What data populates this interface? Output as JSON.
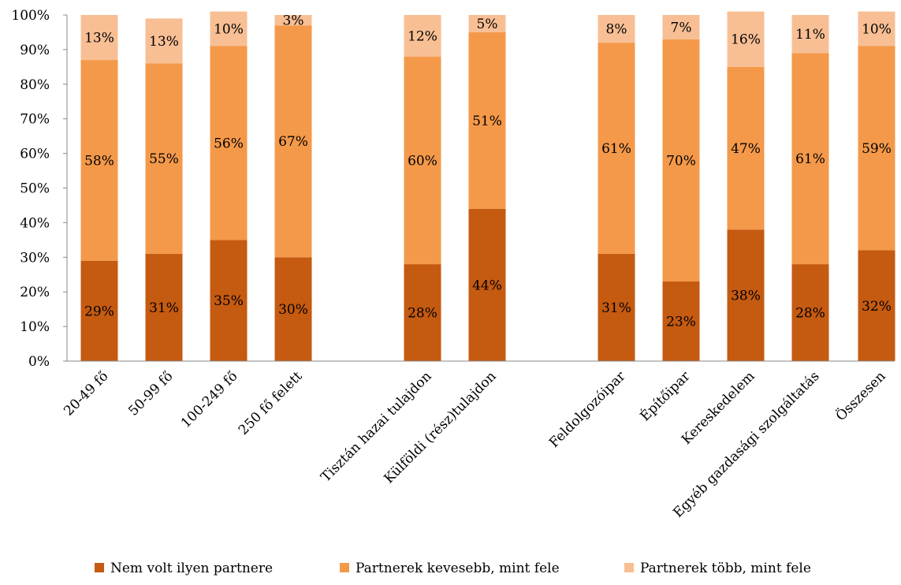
{
  "chart_data": {
    "type": "bar",
    "stacked": true,
    "percent_stacked": true,
    "title": "",
    "xlabel": "",
    "ylabel": "",
    "ylim": [
      0,
      100
    ],
    "yticks": [
      "0%",
      "10%",
      "20%",
      "30%",
      "40%",
      "50%",
      "60%",
      "70%",
      "80%",
      "90%",
      "100%"
    ],
    "grid": false,
    "legend_position": "bottom",
    "groups": [
      [
        "20-49 fő",
        "50-99 fő",
        "100-249 fő",
        "250 fő felett"
      ],
      [
        "Tisztán hazai tulajdon",
        "Külföldi (rész)tulajdon"
      ],
      [
        "Feldolgozóipar",
        "Építőipar",
        "Kereskedelem",
        "Egyéb gazdasági szolgáltatás",
        "Összesen"
      ]
    ],
    "categories": [
      "20-49 fő",
      "50-99 fő",
      "100-249 fő",
      "250 fő felett",
      "Tisztán hazai tulajdon",
      "Külföldi (rész)tulajdon",
      "Feldolgozóipar",
      "Építőipar",
      "Kereskedelem",
      "Egyéb gazdasági szolgáltatás",
      "Összesen"
    ],
    "series": [
      {
        "name": "Nem volt ilyen partnere",
        "color": "#C55A11",
        "values": [
          29,
          31,
          35,
          30,
          28,
          44,
          31,
          23,
          38,
          28,
          32
        ],
        "labels": [
          "29%",
          "31%",
          "35%",
          "30%",
          "28%",
          "44%",
          "31%",
          "23%",
          "38%",
          "28%",
          "32%"
        ]
      },
      {
        "name": "Partnerek kevesebb, mint fele",
        "color": "#F4994A",
        "values": [
          58,
          55,
          56,
          67,
          60,
          51,
          61,
          70,
          47,
          61,
          59
        ],
        "labels": [
          "58%",
          "55%",
          "56%",
          "67%",
          "60%",
          "51%",
          "61%",
          "70%",
          "47%",
          "61%",
          "59%"
        ]
      },
      {
        "name": "Partnerek több, mint fele",
        "color": "#F8BF94",
        "values": [
          13,
          13,
          10,
          3,
          12,
          5,
          8,
          7,
          16,
          11,
          10
        ],
        "labels": [
          "13%",
          "13%",
          "10%",
          "3%",
          "12%",
          "5%",
          "8%",
          "7%",
          "16%",
          "11%",
          "10%"
        ]
      }
    ]
  }
}
